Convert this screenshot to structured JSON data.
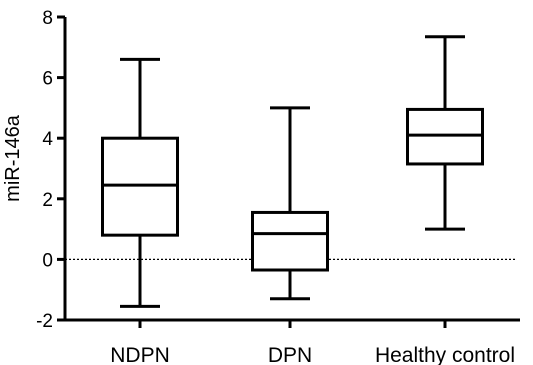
{
  "chart_data": {
    "type": "box",
    "title": "",
    "xlabel": "",
    "ylabel": "miR-146a",
    "ylim": [
      -2,
      8
    ],
    "yticks": [
      -2,
      0,
      2,
      4,
      6,
      8
    ],
    "reference_line": {
      "y": 0,
      "style": "dotted"
    },
    "categories": [
      "NDPN",
      "DPN",
      "Healthy control"
    ],
    "boxes": [
      {
        "category": "NDPN",
        "min": -1.55,
        "q1": 0.8,
        "median": 2.45,
        "q3": 4.0,
        "max": 6.6
      },
      {
        "category": "DPN",
        "min": -1.3,
        "q1": -0.35,
        "median": 0.85,
        "q3": 1.55,
        "max": 5.0
      },
      {
        "category": "Healthy control",
        "min": 1.0,
        "q1": 3.15,
        "median": 4.1,
        "q3": 4.95,
        "max": 7.35
      }
    ],
    "colors": {
      "line": "#000000",
      "fill": "#ffffff"
    }
  }
}
